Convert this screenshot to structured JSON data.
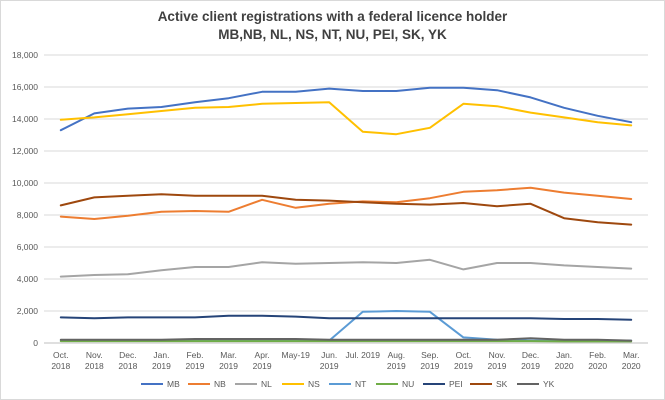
{
  "chart_data": {
    "type": "line",
    "title": "Active client registrations with a federal licence holder",
    "subtitle": "MB,NB, NL, NS, NT, NU, PEI, SK, YK",
    "xlabel": "",
    "ylabel": "",
    "ylim": [
      0,
      18000
    ],
    "yticks": [
      "0",
      "2,000",
      "4,000",
      "6,000",
      "8,000",
      "10,000",
      "12,000",
      "14,000",
      "16,000",
      "18,000"
    ],
    "grid": true,
    "legend": "bottom",
    "categories": [
      [
        "Oct.",
        "2018"
      ],
      [
        "Nov.",
        "2018"
      ],
      [
        "Dec.",
        "2018"
      ],
      [
        "Jan.",
        "2019"
      ],
      [
        "Feb.",
        "2019"
      ],
      [
        "Mar.",
        "2019"
      ],
      [
        "Apr.",
        "2019"
      ],
      [
        "May-19",
        ""
      ],
      [
        "Jun.",
        "2019"
      ],
      [
        "Jul. 2019",
        ""
      ],
      [
        "Aug.",
        "2019"
      ],
      [
        "Sep.",
        "2019"
      ],
      [
        "Oct.",
        "2019"
      ],
      [
        "Nov.",
        "2019"
      ],
      [
        "Dec.",
        "2019"
      ],
      [
        "Jan.",
        "2020"
      ],
      [
        "Feb.",
        "2020"
      ],
      [
        "Mar.",
        "2020"
      ]
    ],
    "series": [
      {
        "name": "MB",
        "color": "#4472c4",
        "values": [
          13300,
          14350,
          14650,
          14750,
          15050,
          15300,
          15700,
          15700,
          15900,
          15750,
          15750,
          15950,
          15950,
          15800,
          15350,
          14700,
          14200,
          13800
        ]
      },
      {
        "name": "NB",
        "color": "#ed7d31",
        "values": [
          7900,
          7750,
          7950,
          8200,
          8250,
          8200,
          8950,
          8450,
          8700,
          8850,
          8800,
          9050,
          9450,
          9550,
          9700,
          9400,
          9200,
          9000
        ]
      },
      {
        "name": "NL",
        "color": "#a5a5a5",
        "values": [
          4150,
          4250,
          4300,
          4550,
          4750,
          4750,
          5050,
          4950,
          5000,
          5050,
          5000,
          5200,
          4600,
          5000,
          5000,
          4850,
          4750,
          4650
        ]
      },
      {
        "name": "NS",
        "color": "#ffc000",
        "values": [
          13950,
          14100,
          14300,
          14500,
          14700,
          14750,
          14950,
          15000,
          15050,
          13200,
          13050,
          13450,
          14950,
          14800,
          14400,
          14100,
          13800,
          13600
        ]
      },
      {
        "name": "NT",
        "color": "#5b9bd5",
        "values": [
          150,
          150,
          150,
          150,
          150,
          150,
          150,
          150,
          150,
          1950,
          2000,
          1950,
          350,
          200,
          150,
          150,
          150,
          150
        ]
      },
      {
        "name": "NU",
        "color": "#70ad47",
        "values": [
          120,
          120,
          120,
          120,
          120,
          120,
          120,
          120,
          120,
          120,
          120,
          120,
          120,
          120,
          120,
          100,
          100,
          100
        ]
      },
      {
        "name": "PEI",
        "color": "#264478",
        "values": [
          1600,
          1550,
          1600,
          1600,
          1600,
          1700,
          1700,
          1650,
          1550,
          1550,
          1550,
          1550,
          1550,
          1550,
          1550,
          1500,
          1500,
          1450
        ]
      },
      {
        "name": "SK",
        "color": "#9e480e",
        "values": [
          8600,
          9100,
          9200,
          9300,
          9200,
          9200,
          9200,
          8950,
          8900,
          8800,
          8700,
          8650,
          8750,
          8550,
          8700,
          7800,
          7550,
          7400
        ]
      },
      {
        "name": "YK",
        "color": "#636363",
        "values": [
          200,
          200,
          200,
          200,
          250,
          250,
          250,
          250,
          200,
          200,
          200,
          200,
          200,
          200,
          300,
          200,
          200,
          150
        ]
      }
    ]
  }
}
